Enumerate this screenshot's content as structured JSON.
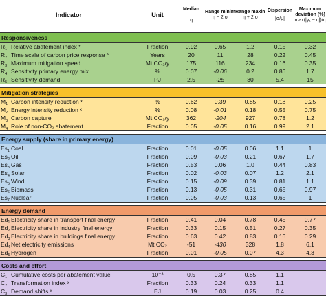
{
  "headers": {
    "indicator": "Indicator",
    "unit": "Unit",
    "median": "Median",
    "median_sym": "η",
    "range_min": "Range minimum",
    "range_min_sym": "η − 2 σ",
    "range_max": "Range maximum",
    "range_max_sym": "η + 2 σ",
    "dispersion": "Dispersion",
    "dispersion_sym": "|σ/μ|",
    "max_dev": "Maximum deviation (%)",
    "max_dev_sym": "max(|y₁ − η|)/η"
  },
  "sections": [
    {
      "title": "Responsiveness",
      "color": "#7fbf50",
      "rows": [
        {
          "code": "R",
          "sub": "1",
          "indicator": "Relative abatement index *",
          "unit": "Fraction",
          "median": "0.92",
          "min": "0.65",
          "max": "1.2",
          "disp": "0.15",
          "dev": "0.32"
        },
        {
          "code": "R",
          "sub": "2",
          "indicator": "Time scale of carbon price response *",
          "unit": "Years",
          "median": "20",
          "min": "11",
          "max": "28",
          "disp": "0.22",
          "dev": "0.45"
        },
        {
          "code": "R",
          "sub": "3",
          "indicator": "Maximum mitigation speed",
          "unit": "Mt CO₂/y",
          "median": "175",
          "min": "116",
          "max": "234",
          "disp": "0.16",
          "dev": "0.35"
        },
        {
          "code": "R",
          "sub": "4",
          "indicator": "Sensitivity primary energy mix",
          "unit": "%",
          "median": "0.07",
          "min": "-0.06",
          "max": "0.2",
          "disp": "0.86",
          "dev": "1.7"
        },
        {
          "code": "R",
          "sub": "5",
          "indicator": "Sensitivity demand",
          "unit": "PJ",
          "median": "2.5",
          "min": "-25",
          "max": "30",
          "disp": "5.4",
          "dev": "15"
        }
      ]
    },
    {
      "title": "Mitigation strategies",
      "color": "#f7c02a",
      "rows": [
        {
          "code": "M",
          "sub": "1",
          "indicator": "Carbon intensity reduction ˣ",
          "unit": "%",
          "median": "0.62",
          "min": "0.39",
          "max": "0.85",
          "disp": "0.18",
          "dev": "0.25"
        },
        {
          "code": "M",
          "sub": "2",
          "indicator": "Energy intensity reduction ˣ",
          "unit": "%",
          "median": "0.08",
          "min": "-0.01",
          "max": "0.18",
          "disp": "0.55",
          "dev": "0.75"
        },
        {
          "code": "M",
          "sub": "3",
          "indicator": "Carbon capture",
          "unit": "Mt CO₂/y",
          "median": "362",
          "min": "-204",
          "max": "927",
          "disp": "0.78",
          "dev": "1.2"
        },
        {
          "code": "M",
          "sub": "4",
          "indicator": "Role of non-CO₂ abatement",
          "unit": "Fraction",
          "median": "0.05",
          "min": "-0.05",
          "max": "0.16",
          "disp": "0.99",
          "dev": "2.1"
        }
      ]
    },
    {
      "title": "Energy supply (share in primary energy)",
      "color": "#8ab4dc",
      "rows": [
        {
          "code": "Es",
          "sub": "1",
          "indicator": "Coal",
          "unit": "Fraction",
          "median": "0.01",
          "min": "-0.05",
          "max": "0.06",
          "disp": "1.1",
          "dev": "1"
        },
        {
          "code": "Es",
          "sub": "2",
          "indicator": "Oil",
          "unit": "Fraction",
          "median": "0.09",
          "min": "-0.03",
          "max": "0.21",
          "disp": "0.67",
          "dev": "1.7"
        },
        {
          "code": "Es",
          "sub": "3",
          "indicator": "Gas",
          "unit": "Fraction",
          "median": "0.53",
          "min": "0.06",
          "max": "1.0",
          "disp": "0.44",
          "dev": "0.83"
        },
        {
          "code": "Es",
          "sub": "4",
          "indicator": "Solar",
          "unit": "Fraction",
          "median": "0.02",
          "min": "-0.03",
          "max": "0.07",
          "disp": "1.2",
          "dev": "2.1"
        },
        {
          "code": "Es",
          "sub": "5",
          "indicator": "Wind",
          "unit": "Fraction",
          "median": "0.15",
          "min": "-0.09",
          "max": "0.39",
          "disp": "0.81",
          "dev": "1.1"
        },
        {
          "code": "Es",
          "sub": "6",
          "indicator": "Biomass",
          "unit": "Fraction",
          "median": "0.13",
          "min": "-0.05",
          "max": "0.31",
          "disp": "0.65",
          "dev": "0.97"
        },
        {
          "code": "Es",
          "sub": "7",
          "indicator": "Nuclear",
          "unit": "Fraction",
          "median": "0.05",
          "min": "-0.03",
          "max": "0.13",
          "disp": "0.65",
          "dev": "1"
        }
      ]
    },
    {
      "title": "Energy demand",
      "color": "#f09a6a",
      "rows": [
        {
          "code": "Ed",
          "sub": "1",
          "indicator": "Electricity share in transport final energy",
          "unit": "Fraction",
          "median": "0.41",
          "min": "0.04",
          "max": "0.78",
          "disp": "0.45",
          "dev": "0.77"
        },
        {
          "code": "Ed",
          "sub": "2",
          "indicator": "Electricity share in industry final energy",
          "unit": "Fraction",
          "median": "0.33",
          "min": "0.15",
          "max": "0.51",
          "disp": "0.27",
          "dev": "0.35"
        },
        {
          "code": "Ed",
          "sub": "3",
          "indicator": "Electricity share in buildings final energy",
          "unit": "Fraction",
          "median": "0.63",
          "min": "0.42",
          "max": "0.83",
          "disp": "0.16",
          "dev": "0.29"
        },
        {
          "code": "Ed",
          "sub": "4",
          "indicator": "Net electricity emissions",
          "unit": "Mt CO₂",
          "median": "-51",
          "min": "-430",
          "max": "328",
          "disp": "1.8",
          "dev": "6.1"
        },
        {
          "code": "Ed",
          "sub": "5",
          "indicator": "Hydrogen",
          "unit": "Fraction",
          "median": "0.01",
          "min": "-0.05",
          "max": "0.07",
          "disp": "4.3",
          "dev": "4.3"
        }
      ]
    },
    {
      "title": "Costs and effort",
      "color": "#b39ad8",
      "rows": [
        {
          "code": "C",
          "sub": "1",
          "indicator": "Cumulative costs per abatement value",
          "unit": "10⁻³",
          "median": "0.5",
          "min": "0.37",
          "max": "0.85",
          "disp": "1.1",
          "dev": ""
        },
        {
          "code": "C",
          "sub": "2",
          "indicator": "Transformation index ˣ",
          "unit": "Fraction",
          "median": "0.33",
          "min": "0.24",
          "max": "0.33",
          "disp": "1.1",
          "dev": ""
        },
        {
          "code": "C",
          "sub": "3",
          "indicator": "Demand shifts ˣ",
          "unit": "EJ",
          "median": "0.19",
          "min": "0.03",
          "max": "0.25",
          "disp": "0.4",
          "dev": ""
        }
      ]
    }
  ]
}
